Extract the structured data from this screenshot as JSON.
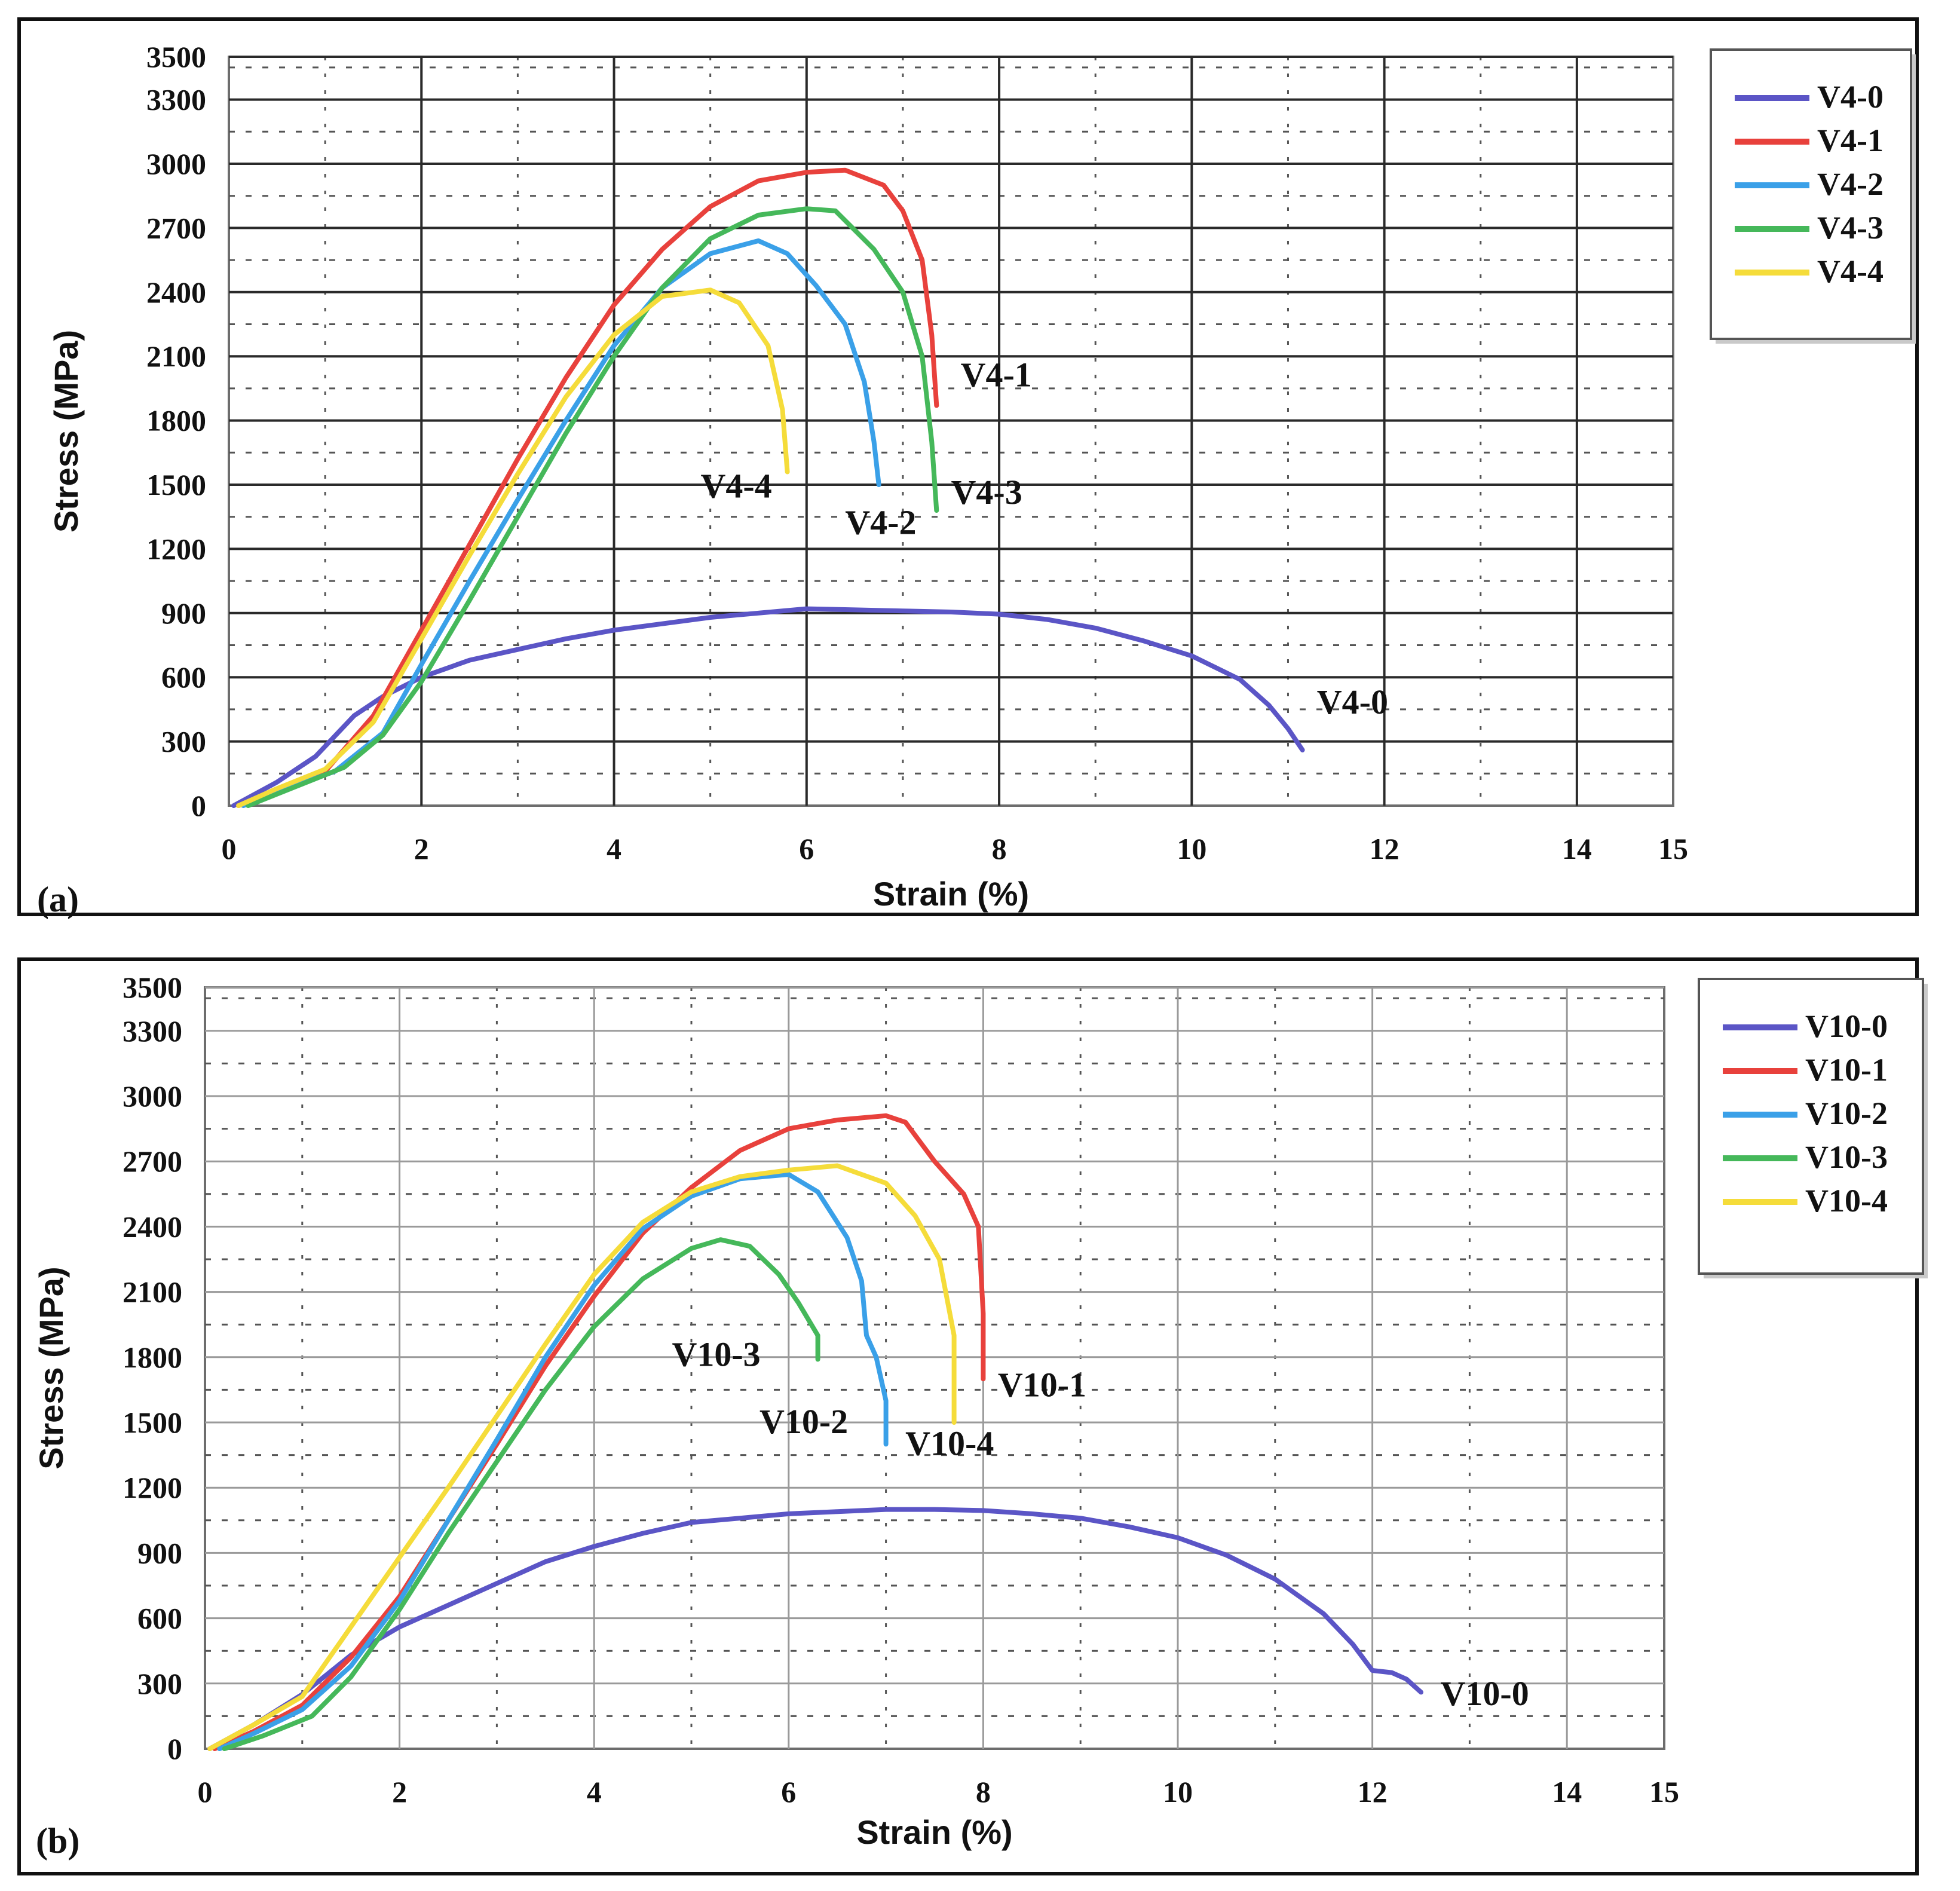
{
  "colors": {
    "s0": "#5b55c6",
    "s1": "#e8413c",
    "s2": "#3aa0e8",
    "s3": "#45b85a",
    "s4": "#f5dc3a"
  },
  "chart_data": [
    {
      "type": "line",
      "panel_label": "(a)",
      "xlabel": "Strain (%)",
      "ylabel": "Stress (MPa)",
      "xlim": [
        0,
        15
      ],
      "ylim": [
        0,
        3500
      ],
      "xticks": [
        0,
        2,
        4,
        6,
        8,
        10,
        12,
        14,
        15
      ],
      "xtick_labels": [
        "0",
        "2",
        "4",
        "6",
        "8",
        "10",
        "12",
        "14",
        "15"
      ],
      "yticks": [
        0,
        300,
        600,
        900,
        1200,
        1500,
        1800,
        2100,
        2400,
        2700,
        3000,
        3300,
        3500
      ],
      "ytick_labels": [
        "0",
        "300",
        "600",
        "900",
        "1200",
        "1500",
        "1800",
        "2100",
        "2400",
        "2700",
        "3000",
        "3300",
        "3500"
      ],
      "grid": true,
      "legend_position": "right",
      "series": [
        {
          "name": "V4-0",
          "color_key": "s0",
          "label": "V4-0",
          "label_at": [
            11.3,
            430
          ],
          "x": [
            0.05,
            0.5,
            0.9,
            1.3,
            1.6,
            2.0,
            2.5,
            3.0,
            3.5,
            4.0,
            4.5,
            5.0,
            5.5,
            6.0,
            6.5,
            7.0,
            7.5,
            8.0,
            8.5,
            9.0,
            9.5,
            10.0,
            10.5,
            10.8,
            11.0,
            11.15
          ],
          "y": [
            0,
            110,
            230,
            420,
            510,
            600,
            680,
            730,
            780,
            820,
            850,
            880,
            900,
            920,
            915,
            910,
            905,
            895,
            870,
            830,
            770,
            700,
            590,
            470,
            360,
            260
          ]
        },
        {
          "name": "V4-1",
          "color_key": "s1",
          "label": "V4-1",
          "label_at": [
            7.6,
            1960
          ],
          "x": [
            0.1,
            0.5,
            1.0,
            1.5,
            2.0,
            2.5,
            3.0,
            3.5,
            4.0,
            4.5,
            5.0,
            5.5,
            6.0,
            6.4,
            6.8,
            7.0,
            7.2,
            7.3,
            7.35
          ],
          "y": [
            0,
            70,
            160,
            420,
            820,
            1220,
            1620,
            2000,
            2340,
            2600,
            2800,
            2920,
            2960,
            2970,
            2900,
            2780,
            2550,
            2200,
            1870
          ]
        },
        {
          "name": "V4-2",
          "color_key": "s2",
          "label": "V4-2",
          "label_at": [
            6.4,
            1270
          ],
          "x": [
            0.15,
            0.6,
            1.1,
            1.6,
            2.0,
            2.5,
            3.0,
            3.5,
            4.0,
            4.5,
            5.0,
            5.5,
            5.8,
            6.1,
            6.4,
            6.6,
            6.7,
            6.75
          ],
          "y": [
            0,
            80,
            160,
            340,
            660,
            1050,
            1430,
            1800,
            2150,
            2420,
            2580,
            2640,
            2580,
            2430,
            2250,
            1980,
            1700,
            1500
          ]
        },
        {
          "name": "V4-3",
          "color_key": "s3",
          "label": "V4-3",
          "label_at": [
            7.5,
            1410
          ],
          "x": [
            0.2,
            0.7,
            1.2,
            1.6,
            2.0,
            2.5,
            3.0,
            3.5,
            4.0,
            4.5,
            5.0,
            5.5,
            6.0,
            6.3,
            6.7,
            7.0,
            7.2,
            7.3,
            7.35
          ],
          "y": [
            0,
            90,
            180,
            330,
            580,
            960,
            1350,
            1740,
            2100,
            2420,
            2650,
            2760,
            2790,
            2780,
            2600,
            2400,
            2100,
            1700,
            1380
          ]
        },
        {
          "name": "V4-4",
          "color_key": "s4",
          "label": "V4-4",
          "label_at": [
            4.9,
            1440
          ],
          "x": [
            0.1,
            0.5,
            1.0,
            1.5,
            2.0,
            2.5,
            3.0,
            3.5,
            4.0,
            4.5,
            5.0,
            5.3,
            5.6,
            5.75,
            5.8
          ],
          "y": [
            0,
            80,
            170,
            390,
            780,
            1170,
            1550,
            1910,
            2200,
            2380,
            2410,
            2350,
            2150,
            1850,
            1560
          ]
        }
      ]
    },
    {
      "type": "line",
      "panel_label": "(b)",
      "xlabel": "Strain (%)",
      "ylabel": "Stress (MPa)",
      "xlim": [
        0,
        15
      ],
      "ylim": [
        0,
        3500
      ],
      "xticks": [
        0,
        2,
        4,
        6,
        8,
        10,
        12,
        14,
        15
      ],
      "xtick_labels": [
        "0",
        "2",
        "4",
        "6",
        "8",
        "10",
        "12",
        "14",
        "15"
      ],
      "yticks": [
        0,
        300,
        600,
        900,
        1200,
        1500,
        1800,
        2100,
        2400,
        2700,
        3000,
        3300,
        3500
      ],
      "ytick_labels": [
        "0",
        "300",
        "600",
        "900",
        "1200",
        "1500",
        "1800",
        "2100",
        "2400",
        "2700",
        "3000",
        "3300",
        "3500"
      ],
      "grid": true,
      "legend_position": "right",
      "series": [
        {
          "name": "V10-0",
          "color_key": "s0",
          "label": "V10-0",
          "label_at": [
            12.7,
            200
          ],
          "x": [
            0.05,
            0.5,
            1.0,
            1.5,
            2.0,
            2.5,
            3.0,
            3.5,
            4.0,
            4.5,
            5.0,
            5.5,
            6.0,
            6.5,
            7.0,
            7.5,
            8.0,
            8.5,
            9.0,
            9.5,
            10.0,
            10.5,
            11.0,
            11.5,
            11.8,
            12.0,
            12.2,
            12.35,
            12.5
          ],
          "y": [
            0,
            110,
            250,
            430,
            560,
            660,
            760,
            860,
            930,
            990,
            1040,
            1060,
            1080,
            1090,
            1100,
            1100,
            1095,
            1080,
            1060,
            1020,
            970,
            890,
            780,
            620,
            480,
            360,
            350,
            320,
            260
          ]
        },
        {
          "name": "V10-1",
          "color_key": "s1",
          "label": "V10-1",
          "label_at": [
            8.15,
            1620
          ],
          "x": [
            0.1,
            0.5,
            1.0,
            1.5,
            2.0,
            2.5,
            3.0,
            3.5,
            4.0,
            4.5,
            5.0,
            5.5,
            6.0,
            6.5,
            7.0,
            7.2,
            7.5,
            7.8,
            7.95,
            8.0,
            8.0
          ],
          "y": [
            0,
            80,
            200,
            420,
            700,
            1050,
            1400,
            1760,
            2080,
            2370,
            2580,
            2750,
            2850,
            2890,
            2910,
            2880,
            2700,
            2550,
            2400,
            2000,
            1700
          ]
        },
        {
          "name": "V10-2",
          "color_key": "s2",
          "label": "V10-2",
          "label_at": [
            5.7,
            1450
          ],
          "x": [
            0.15,
            0.5,
            1.0,
            1.5,
            2.0,
            2.5,
            3.0,
            3.5,
            4.0,
            4.5,
            5.0,
            5.5,
            6.0,
            6.3,
            6.6,
            6.75,
            6.8,
            6.9,
            7.0,
            7.0
          ],
          "y": [
            0,
            70,
            180,
            380,
            680,
            1050,
            1420,
            1800,
            2130,
            2390,
            2540,
            2620,
            2640,
            2560,
            2350,
            2150,
            1900,
            1800,
            1600,
            1400
          ]
        },
        {
          "name": "V10-3",
          "color_key": "s3",
          "label": "V10-3",
          "label_at": [
            4.8,
            1760
          ],
          "x": [
            0.2,
            0.6,
            1.1,
            1.5,
            2.0,
            2.5,
            3.0,
            3.5,
            4.0,
            4.5,
            5.0,
            5.3,
            5.6,
            5.9,
            6.1,
            6.3,
            6.3
          ],
          "y": [
            0,
            60,
            150,
            330,
            640,
            990,
            1320,
            1650,
            1940,
            2160,
            2300,
            2340,
            2310,
            2180,
            2050,
            1900,
            1790
          ]
        },
        {
          "name": "V10-4",
          "color_key": "s4",
          "label": "V10-4",
          "label_at": [
            7.2,
            1350
          ],
          "x": [
            0.05,
            0.5,
            1.0,
            1.5,
            2.0,
            2.5,
            3.0,
            3.5,
            4.0,
            4.5,
            5.0,
            5.5,
            6.0,
            6.5,
            7.0,
            7.3,
            7.55,
            7.7,
            7.7
          ],
          "y": [
            0,
            110,
            240,
            560,
            880,
            1200,
            1530,
            1860,
            2180,
            2420,
            2560,
            2630,
            2660,
            2680,
            2600,
            2450,
            2250,
            1900,
            1500
          ]
        }
      ]
    }
  ]
}
